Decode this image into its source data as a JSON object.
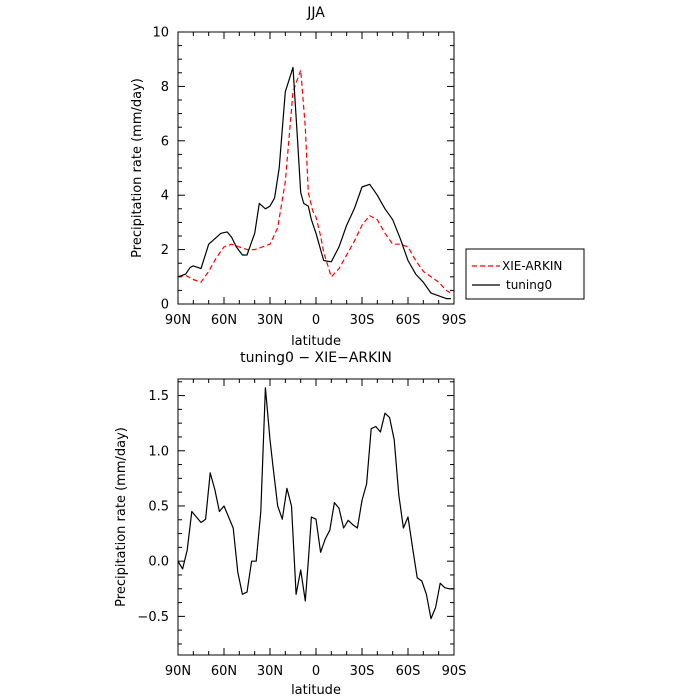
{
  "chart_data": [
    {
      "type": "line",
      "title": "JJA",
      "xlabel": "latitude",
      "ylabel": "Precipitation rate (mm/day)",
      "ylim": [
        0,
        10
      ],
      "yticks": [
        "0",
        "2",
        "4",
        "6",
        "8",
        "10"
      ],
      "xlim": [
        90,
        -90
      ],
      "xticks": [
        "90N",
        "60N",
        "30N",
        "0",
        "30S",
        "60S",
        "90S"
      ],
      "xtick_values": [
        90,
        60,
        30,
        0,
        -30,
        -60,
        -90
      ],
      "legend_position": "right",
      "series": [
        {
          "name": "XIE-ARKIN",
          "color": "#ff0000",
          "dash": "dashed",
          "x": [
            90,
            85,
            80,
            75,
            70,
            65,
            60,
            55,
            50,
            45,
            40,
            35,
            30,
            25,
            20,
            15,
            10,
            7,
            5,
            2,
            0,
            -3,
            -5,
            -10,
            -15,
            -20,
            -25,
            -30,
            -35,
            -40,
            -45,
            -50,
            -55,
            -60,
            -65,
            -70,
            -75,
            -80,
            -85,
            -88
          ],
          "y": [
            1.0,
            1.05,
            0.9,
            0.8,
            1.2,
            1.7,
            2.1,
            2.2,
            2.1,
            2.0,
            2.0,
            2.1,
            2.2,
            2.8,
            4.5,
            7.8,
            8.6,
            6.5,
            4.1,
            3.4,
            3.2,
            2.5,
            1.9,
            1.0,
            1.3,
            1.8,
            2.3,
            2.9,
            3.25,
            3.1,
            2.6,
            2.2,
            2.2,
            2.1,
            1.6,
            1.2,
            1.0,
            0.8,
            0.5,
            0.4
          ]
        },
        {
          "name": "tuning0",
          "color": "#000000",
          "dash": "solid",
          "x": [
            90,
            85,
            82,
            80,
            75,
            70,
            65,
            62,
            58,
            55,
            52,
            48,
            45,
            40,
            37,
            33,
            30,
            27,
            24,
            20,
            15,
            12,
            10,
            8,
            5,
            3,
            0,
            -3,
            -5,
            -10,
            -15,
            -20,
            -25,
            -30,
            -35,
            -40,
            -43,
            -45,
            -50,
            -55,
            -60,
            -65,
            -70,
            -75,
            -80,
            -85,
            -88
          ],
          "y": [
            1.0,
            1.1,
            1.35,
            1.4,
            1.3,
            2.2,
            2.45,
            2.6,
            2.65,
            2.45,
            2.1,
            1.8,
            1.8,
            2.6,
            3.7,
            3.5,
            3.6,
            3.9,
            5.0,
            7.8,
            8.7,
            6.0,
            4.1,
            3.7,
            3.6,
            3.1,
            2.6,
            2.0,
            1.6,
            1.55,
            2.1,
            2.9,
            3.5,
            4.3,
            4.4,
            4.0,
            3.7,
            3.5,
            3.1,
            2.4,
            1.6,
            1.1,
            0.8,
            0.4,
            0.3,
            0.2,
            0.2
          ]
        }
      ]
    },
    {
      "type": "line",
      "title": "tuning0 − XIE−ARKIN",
      "xlabel": "latitude",
      "ylabel": "Precipitation rate (mm/day)",
      "ylim": [
        -0.85,
        1.65
      ],
      "yticks": [
        "−0.5",
        "0.0",
        "0.5",
        "1.0",
        "1.5"
      ],
      "ytick_values": [
        -0.5,
        0,
        0.5,
        1.0,
        1.5
      ],
      "xlim": [
        90,
        -90
      ],
      "xticks": [
        "90N",
        "60N",
        "30N",
        "0",
        "30S",
        "60S",
        "90S"
      ],
      "xtick_values": [
        90,
        60,
        30,
        0,
        -30,
        -60,
        -90
      ],
      "series": [
        {
          "name": "",
          "color": "#000000",
          "dash": "solid",
          "x": [
            90,
            87,
            84,
            81,
            78,
            75,
            72,
            69,
            66,
            63,
            60,
            57,
            54,
            51,
            48,
            45,
            42,
            39,
            36,
            33,
            30,
            28,
            25,
            22,
            19,
            16,
            13,
            10,
            7,
            5,
            3,
            0,
            -3,
            -6,
            -9,
            -12,
            -15,
            -18,
            -21,
            -24,
            -27,
            -30,
            -33,
            -36,
            -39,
            -42,
            -45,
            -48,
            -51,
            -54,
            -57,
            -60,
            -63,
            -66,
            -69,
            -72,
            -75,
            -78,
            -81,
            -84,
            -87,
            -90
          ],
          "y": [
            0.0,
            -0.07,
            0.1,
            0.45,
            0.4,
            0.35,
            0.38,
            0.8,
            0.65,
            0.45,
            0.5,
            0.4,
            0.3,
            -0.1,
            -0.3,
            -0.28,
            0.0,
            0.0,
            0.45,
            1.57,
            1.1,
            0.85,
            0.5,
            0.38,
            0.66,
            0.5,
            -0.3,
            -0.08,
            -0.36,
            0.0,
            0.4,
            0.38,
            0.08,
            0.2,
            0.28,
            0.53,
            0.48,
            0.3,
            0.37,
            0.33,
            0.3,
            0.55,
            0.7,
            1.2,
            1.22,
            1.17,
            1.34,
            1.3,
            1.1,
            0.6,
            0.3,
            0.4,
            0.12,
            -0.15,
            -0.18,
            -0.3,
            -0.52,
            -0.42,
            -0.2,
            -0.24,
            -0.25,
            -0.25
          ]
        }
      ]
    }
  ]
}
